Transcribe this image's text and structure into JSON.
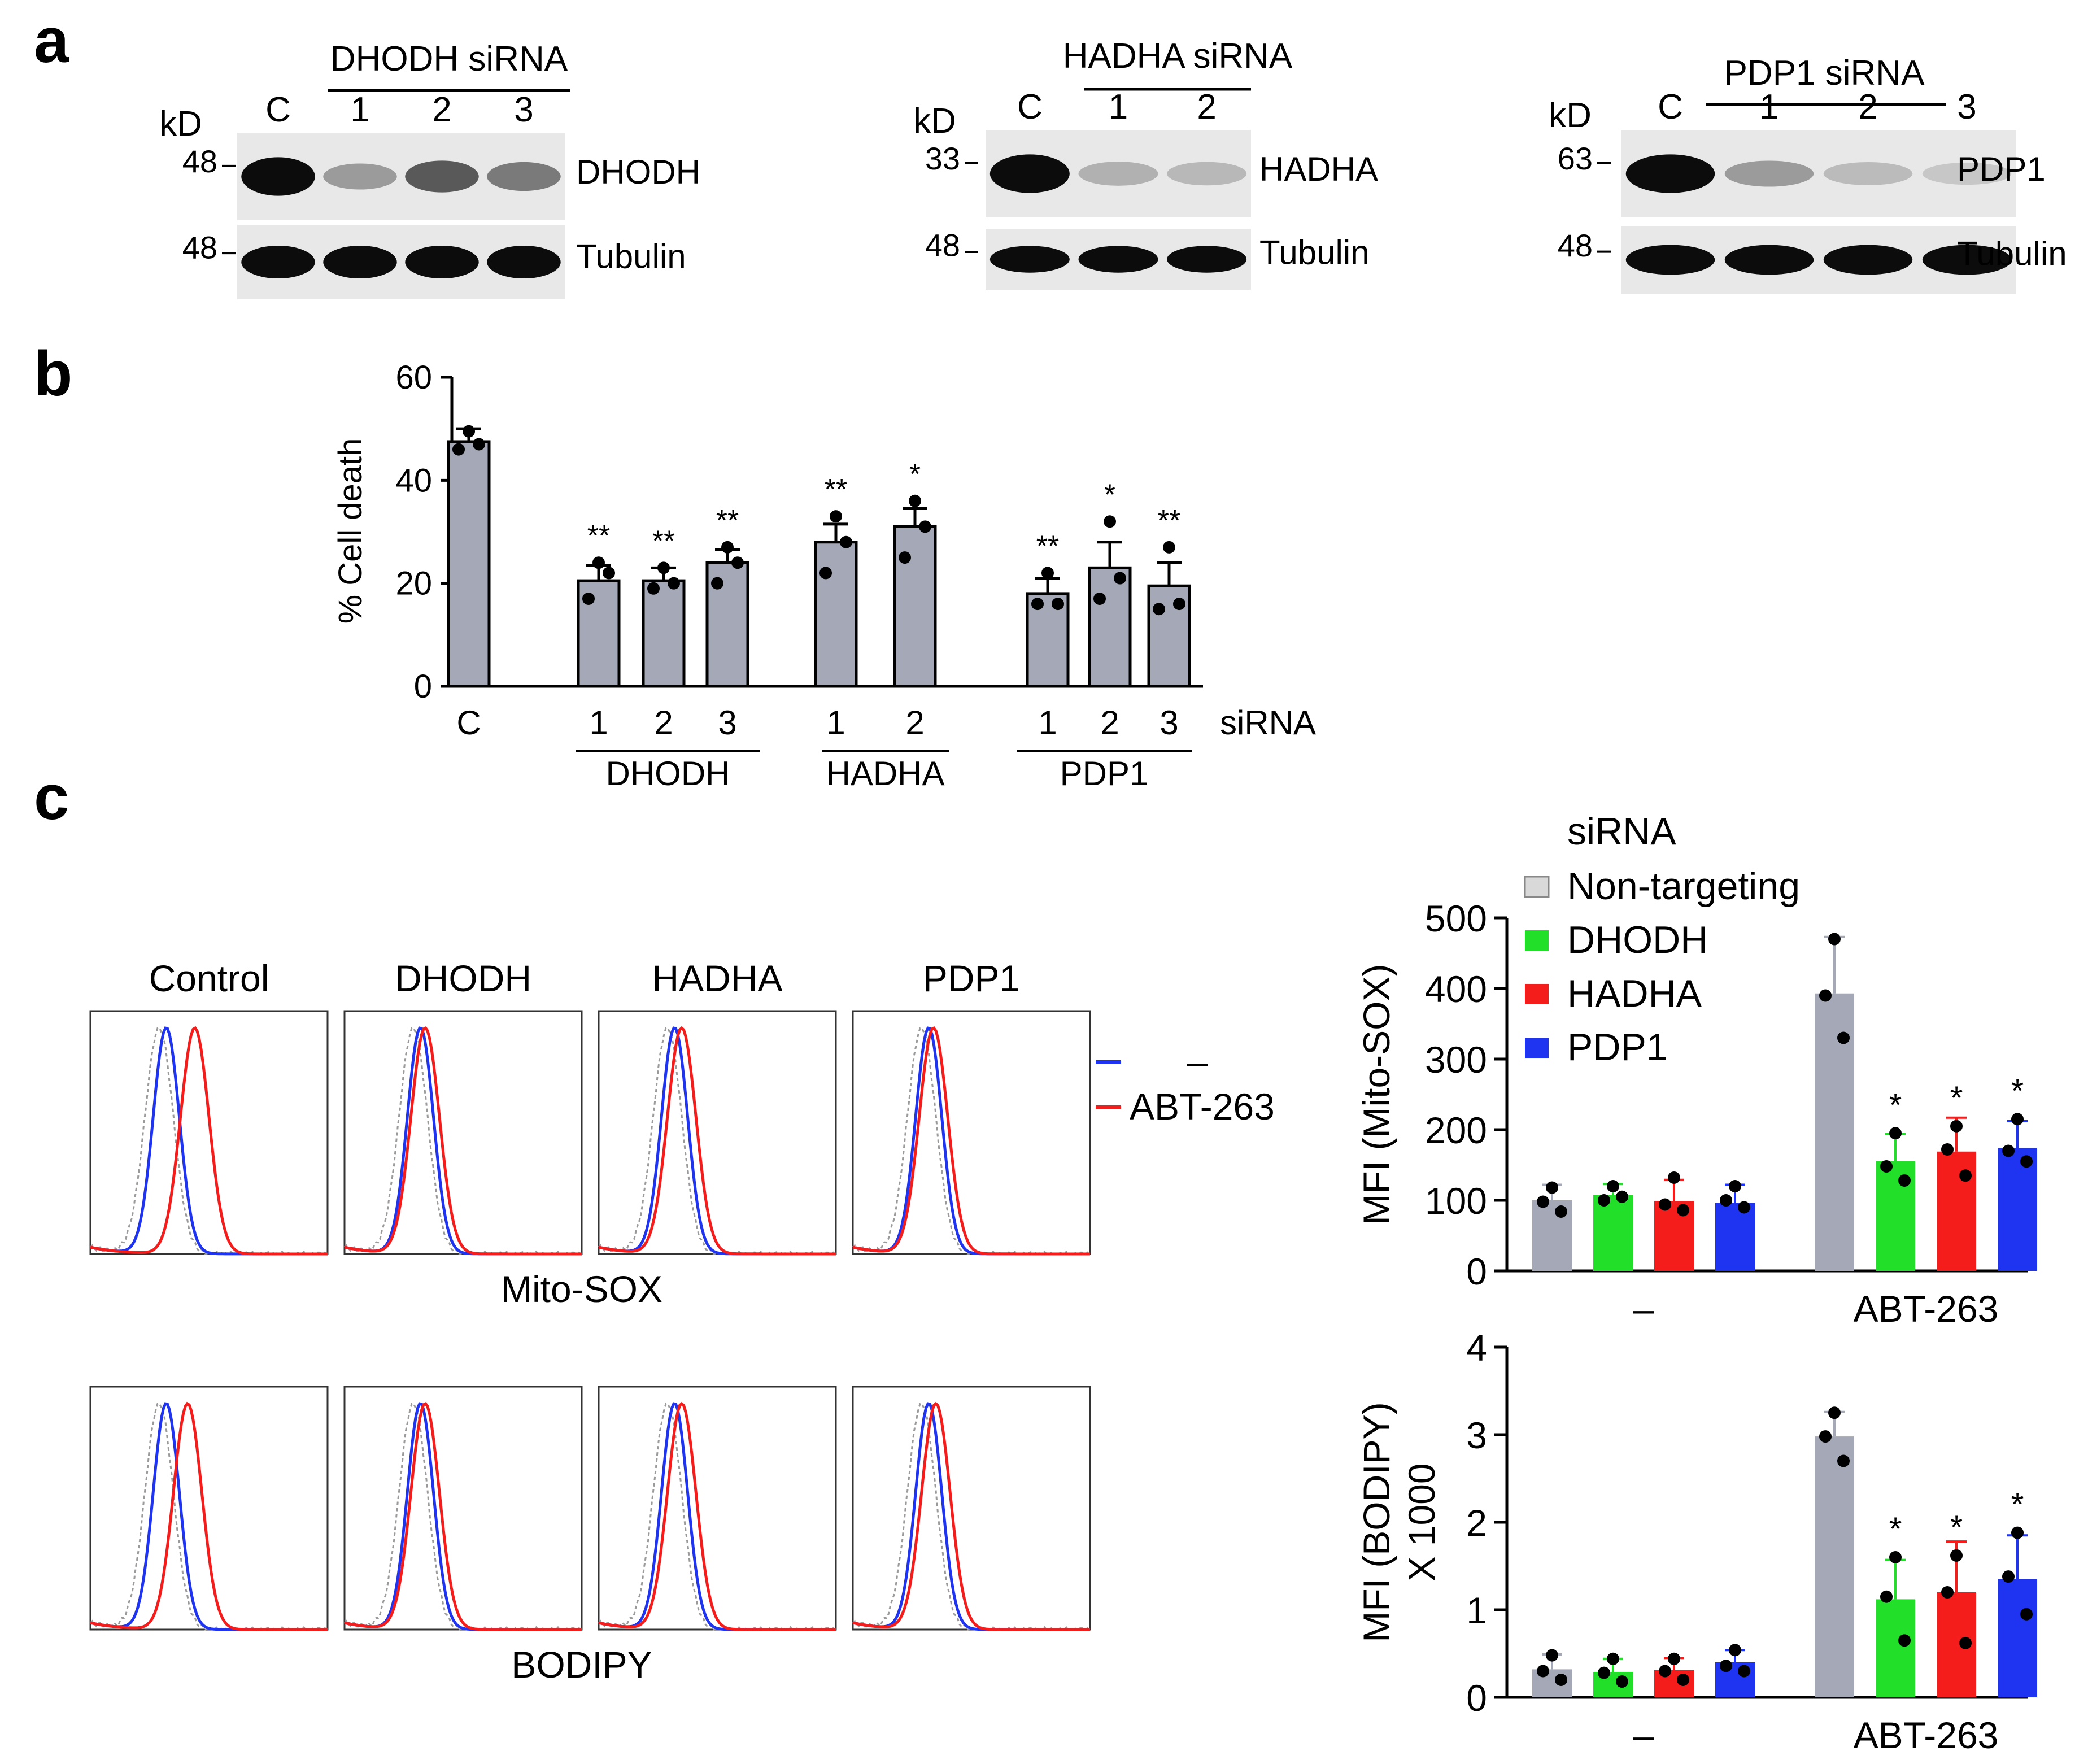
{
  "panel_labels": [
    "a",
    "b",
    "c"
  ],
  "colors": {
    "gray_bar": "#a5a8b6",
    "green": "#22e02a",
    "red": "#f51c1c",
    "blue": "#1f34f0",
    "nontarget_legend": "#d9d9d9",
    "blot_bg": "#e8e8e8",
    "band": "#0c0c0c"
  },
  "western_blots": [
    {
      "title": "DHODH siRNA",
      "kd_label": "kD",
      "lanes": [
        "C",
        "1",
        "2",
        "3"
      ],
      "rows": [
        {
          "protein": "DHODH",
          "marker": "48",
          "band_strength": [
            1.0,
            0.35,
            0.65,
            0.5
          ]
        },
        {
          "protein": "Tubulin",
          "marker": "48",
          "band_strength": [
            1.0,
            1.0,
            1.0,
            1.0
          ]
        }
      ]
    },
    {
      "title": "HADHA siRNA",
      "kd_label": "kD",
      "lanes": [
        "C",
        "1",
        "2"
      ],
      "rows": [
        {
          "protein": "HADHA",
          "marker": "33",
          "band_strength": [
            1.0,
            0.25,
            0.22
          ]
        },
        {
          "protein": "Tubulin",
          "marker": "48",
          "band_strength": [
            1.0,
            1.0,
            1.0
          ]
        }
      ]
    },
    {
      "title": "PDP1 siRNA",
      "kd_label": "kD",
      "lanes": [
        "C",
        "1",
        "2",
        "3"
      ],
      "rows": [
        {
          "protein": "PDP1",
          "marker": "63",
          "band_strength": [
            1.0,
            0.35,
            0.2,
            0.15
          ]
        },
        {
          "protein": "Tubulin",
          "marker": "48",
          "band_strength": [
            1.0,
            1.0,
            1.0,
            1.0
          ]
        }
      ]
    }
  ],
  "chart_data": [
    {
      "type": "bar",
      "ylabel": "% Cell death",
      "ylim": [
        0,
        60
      ],
      "yticks": [
        0,
        20,
        40,
        60
      ],
      "x_suffix_label": "siRNA",
      "groups": [
        {
          "name": "",
          "labels": [
            "C"
          ],
          "values": [
            47.5
          ],
          "errors": [
            2.5
          ],
          "points": [
            [
              49.5,
              46.0,
              47.0
            ]
          ],
          "stars": [
            ""
          ]
        },
        {
          "name": "DHODH",
          "labels": [
            "1",
            "2",
            "3"
          ],
          "values": [
            20.5,
            20.5,
            24.0
          ],
          "errors": [
            3.0,
            2.5,
            2.5
          ],
          "points": [
            [
              24,
              17,
              22
            ],
            [
              23,
              19,
              20
            ],
            [
              27,
              20,
              24
            ]
          ],
          "stars": [
            "**",
            "**",
            "**"
          ]
        },
        {
          "name": "HADHA",
          "labels": [
            "1",
            "2"
          ],
          "values": [
            28.0,
            31.0
          ],
          "errors": [
            3.5,
            3.5
          ],
          "points": [
            [
              33,
              22,
              28
            ],
            [
              36,
              25,
              31
            ]
          ],
          "stars": [
            "**",
            "*"
          ]
        },
        {
          "name": "PDP1",
          "labels": [
            "1",
            "2",
            "3"
          ],
          "values": [
            18.0,
            23.0,
            19.5
          ],
          "errors": [
            3.0,
            5.0,
            4.5
          ],
          "points": [
            [
              22,
              16,
              16
            ],
            [
              32,
              17,
              21
            ],
            [
              27,
              15,
              16
            ]
          ],
          "stars": [
            "**",
            "*",
            "**"
          ]
        }
      ]
    },
    {
      "type": "bar",
      "ylabel": "MFI (Mito-SOX)",
      "ylim": [
        0,
        500
      ],
      "yticks": [
        0,
        100,
        200,
        300,
        400,
        500
      ],
      "legend_title": "siRNA",
      "series_names": [
        "Non-targeting",
        "DHODH",
        "HADHA",
        "PDP1"
      ],
      "categories": [
        "–",
        "ABT-263"
      ],
      "series": [
        {
          "name": "Non-targeting",
          "values": [
            100,
            393
          ],
          "errors": [
            22,
            80
          ],
          "points": [
            [
              118,
              98,
              84
            ],
            [
              470,
              390,
              330
            ]
          ],
          "stars": [
            "",
            ""
          ]
        },
        {
          "name": "DHODH",
          "values": [
            108,
            156
          ],
          "errors": [
            15,
            38
          ],
          "points": [
            [
              120,
              100,
              105
            ],
            [
              195,
              148,
              128
            ]
          ],
          "stars": [
            "",
            "*"
          ]
        },
        {
          "name": "HADHA",
          "values": [
            99,
            169
          ],
          "errors": [
            30,
            48
          ],
          "points": [
            [
              132,
              94,
              86
            ],
            [
              205,
              172,
              135
            ]
          ],
          "stars": [
            "",
            "*"
          ]
        },
        {
          "name": "PDP1",
          "values": [
            96,
            174
          ],
          "errors": [
            26,
            38
          ],
          "points": [
            [
              120,
              100,
              90
            ],
            [
              215,
              170,
              155
            ]
          ],
          "stars": [
            "",
            "*"
          ]
        }
      ]
    },
    {
      "type": "bar",
      "ylabel_line1": "MFI (BODIPY)",
      "ylabel_line2": "X 1000",
      "ylim": [
        0,
        4
      ],
      "yticks": [
        0,
        1,
        2,
        3,
        4
      ],
      "categories": [
        "–",
        "ABT-263"
      ],
      "series": [
        {
          "name": "Non-targeting",
          "values": [
            0.32,
            2.98
          ],
          "errors": [
            0.17,
            0.28
          ],
          "points": [
            [
              0.48,
              0.3,
              0.2
            ],
            [
              3.25,
              2.98,
              2.7
            ]
          ],
          "stars": [
            "",
            ""
          ]
        },
        {
          "name": "DHODH",
          "values": [
            0.29,
            1.12
          ],
          "errors": [
            0.15,
            0.45
          ],
          "points": [
            [
              0.44,
              0.28,
              0.18
            ],
            [
              1.6,
              1.15,
              0.65
            ]
          ],
          "stars": [
            "",
            "*"
          ]
        },
        {
          "name": "HADHA",
          "values": [
            0.31,
            1.2
          ],
          "errors": [
            0.14,
            0.58
          ],
          "points": [
            [
              0.44,
              0.3,
              0.2
            ],
            [
              1.62,
              1.2,
              0.62
            ]
          ],
          "stars": [
            "",
            "*"
          ]
        },
        {
          "name": "PDP1",
          "values": [
            0.4,
            1.35
          ],
          "errors": [
            0.14,
            0.5
          ],
          "points": [
            [
              0.54,
              0.36,
              0.3
            ],
            [
              1.88,
              1.38,
              0.95
            ]
          ],
          "stars": [
            "",
            "*"
          ]
        }
      ]
    }
  ],
  "flow_panels": {
    "columns": [
      "Control",
      "DHODH",
      "HADHA",
      "PDP1"
    ],
    "rows": [
      "Mito-SOX",
      "BODIPY"
    ],
    "legend": [
      {
        "label": "–",
        "color": "#1f34f0"
      },
      {
        "label": "ABT-263",
        "color": "#f51c1c"
      }
    ],
    "peak_shift": [
      [
        0.12,
        0.02,
        0.03,
        0.02
      ],
      [
        0.09,
        0.02,
        0.03,
        0.03
      ]
    ]
  }
}
